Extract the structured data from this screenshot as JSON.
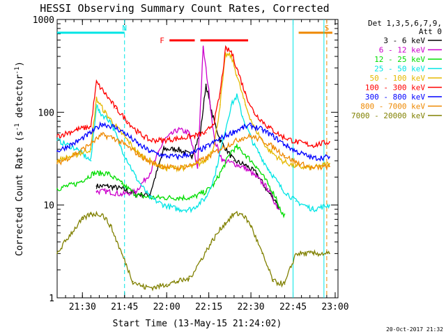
{
  "chart_data": {
    "type": "line",
    "title": "HESSI Observing Summary Count Rates, Corrected",
    "xlabel": "Start Time (13-May-15 21:24:02)",
    "ylabel": "Corrected Count Rate (s⁻¹ detector⁻¹)",
    "ylabel_parts": {
      "main": "Corrected Count Rate (s",
      "exp1": "-1",
      "mid": " detector",
      "exp2": "-1",
      "close": ")"
    },
    "x_start_min": 0,
    "x_range_min": [
      -3.0,
      97.0
    ],
    "y_log": true,
    "y_range": [
      1,
      1000
    ],
    "x_ticks": [
      {
        "label": "21:30",
        "t": 6
      },
      {
        "label": "21:45",
        "t": 21
      },
      {
        "label": "22:00",
        "t": 36
      },
      {
        "label": "22:15",
        "t": 51
      },
      {
        "label": "22:30",
        "t": 66
      },
      {
        "label": "22:45",
        "t": 81
      },
      {
        "label": "23:00",
        "t": 96
      }
    ],
    "y_ticks": [
      {
        "label": "1",
        "v": 1
      },
      {
        "label": "10",
        "v": 10
      },
      {
        "label": "100",
        "v": 100
      },
      {
        "label": "1000",
        "v": 1000
      }
    ],
    "legend_header": [
      "Det 1,3,5,6,7,9,",
      "Att 0"
    ],
    "series": [
      {
        "name": "3 - 6 keV",
        "color": "#000000",
        "points": [
          [
            11,
            16
          ],
          [
            15,
            16
          ],
          [
            20,
            15
          ],
          [
            25,
            13
          ],
          [
            30,
            13
          ],
          [
            35,
            40
          ],
          [
            40,
            40
          ],
          [
            45,
            34
          ],
          [
            48,
            60
          ],
          [
            50,
            200
          ],
          [
            52,
            100
          ],
          [
            55,
            50
          ],
          [
            60,
            30
          ],
          [
            64,
            27
          ],
          [
            68,
            22
          ],
          [
            72,
            14
          ],
          [
            75,
            11
          ],
          [
            76,
            9
          ]
        ]
      },
      {
        "name": "6 - 12 keV",
        "color": "#cc00cc",
        "points": [
          [
            11,
            14
          ],
          [
            15,
            14
          ],
          [
            20,
            13
          ],
          [
            25,
            14
          ],
          [
            30,
            22
          ],
          [
            35,
            50
          ],
          [
            40,
            65
          ],
          [
            44,
            60
          ],
          [
            47,
            25
          ],
          [
            49,
            500
          ],
          [
            51,
            170
          ],
          [
            53,
            50
          ],
          [
            56,
            30
          ],
          [
            60,
            28
          ],
          [
            64,
            25
          ],
          [
            68,
            20
          ],
          [
            72,
            15
          ],
          [
            75,
            10
          ],
          [
            76,
            9
          ]
        ]
      },
      {
        "name": "12 - 25 keV",
        "color": "#00dd00",
        "points": [
          [
            -3,
            15
          ],
          [
            4,
            17
          ],
          [
            10,
            22
          ],
          [
            15,
            22
          ],
          [
            20,
            17
          ],
          [
            25,
            13
          ],
          [
            30,
            12
          ],
          [
            35,
            12
          ],
          [
            40,
            12
          ],
          [
            45,
            12
          ],
          [
            50,
            14
          ],
          [
            53,
            17
          ],
          [
            56,
            25
          ],
          [
            59,
            38
          ],
          [
            61,
            42
          ],
          [
            64,
            35
          ],
          [
            68,
            26
          ],
          [
            72,
            17
          ],
          [
            75,
            12
          ],
          [
            77,
            8
          ],
          [
            78,
            8
          ]
        ]
      },
      {
        "name": "25 - 50 keV",
        "color": "#00e5e5",
        "points": [
          [
            -3,
            50
          ],
          [
            4,
            40
          ],
          [
            9,
            30
          ],
          [
            11,
            120
          ],
          [
            12,
            100
          ],
          [
            16,
            80
          ],
          [
            20,
            40
          ],
          [
            25,
            20
          ],
          [
            30,
            12
          ],
          [
            35,
            10
          ],
          [
            40,
            9
          ],
          [
            45,
            9
          ],
          [
            50,
            12
          ],
          [
            53,
            20
          ],
          [
            56,
            50
          ],
          [
            59,
            120
          ],
          [
            61,
            150
          ],
          [
            63,
            90
          ],
          [
            67,
            45
          ],
          [
            72,
            25
          ],
          [
            77,
            15
          ],
          [
            82,
            11
          ],
          [
            88,
            9
          ],
          [
            94,
            10
          ]
        ]
      },
      {
        "name": "50 - 100 keV",
        "color": "#e5b800",
        "points": [
          [
            -3,
            30
          ],
          [
            4,
            35
          ],
          [
            9,
            40
          ],
          [
            11,
            140
          ],
          [
            14,
            100
          ],
          [
            18,
            70
          ],
          [
            22,
            50
          ],
          [
            26,
            36
          ],
          [
            30,
            30
          ],
          [
            35,
            25
          ],
          [
            40,
            25
          ],
          [
            45,
            26
          ],
          [
            50,
            30
          ],
          [
            53,
            45
          ],
          [
            55,
            120
          ],
          [
            57,
            420
          ],
          [
            59,
            400
          ],
          [
            61,
            250
          ],
          [
            64,
            120
          ],
          [
            67,
            70
          ],
          [
            72,
            40
          ],
          [
            77,
            30
          ],
          [
            82,
            26
          ],
          [
            88,
            25
          ],
          [
            94,
            28
          ]
        ]
      },
      {
        "name": "100 - 300 keV",
        "color": "#ff0000",
        "points": [
          [
            -3,
            55
          ],
          [
            4,
            65
          ],
          [
            9,
            70
          ],
          [
            11,
            210
          ],
          [
            14,
            160
          ],
          [
            18,
            110
          ],
          [
            22,
            80
          ],
          [
            26,
            60
          ],
          [
            30,
            50
          ],
          [
            35,
            50
          ],
          [
            40,
            52
          ],
          [
            45,
            55
          ],
          [
            50,
            60
          ],
          [
            53,
            80
          ],
          [
            55,
            160
          ],
          [
            57,
            480
          ],
          [
            59,
            450
          ],
          [
            61,
            300
          ],
          [
            64,
            160
          ],
          [
            67,
            100
          ],
          [
            72,
            70
          ],
          [
            77,
            55
          ],
          [
            82,
            48
          ],
          [
            88,
            44
          ],
          [
            94,
            48
          ]
        ]
      },
      {
        "name": "300 - 800 keV",
        "color": "#0000ff",
        "points": [
          [
            -3,
            38
          ],
          [
            4,
            48
          ],
          [
            9,
            60
          ],
          [
            13,
            75
          ],
          [
            17,
            70
          ],
          [
            21,
            60
          ],
          [
            26,
            45
          ],
          [
            30,
            38
          ],
          [
            35,
            34
          ],
          [
            40,
            33
          ],
          [
            45,
            36
          ],
          [
            50,
            42
          ],
          [
            55,
            52
          ],
          [
            60,
            62
          ],
          [
            63,
            68
          ],
          [
            66,
            72
          ],
          [
            70,
            65
          ],
          [
            74,
            55
          ],
          [
            78,
            45
          ],
          [
            82,
            38
          ],
          [
            88,
            32
          ],
          [
            94,
            33
          ]
        ]
      },
      {
        "name": "800 - 7000 keV",
        "color": "#ee8800",
        "points": [
          [
            -3,
            28
          ],
          [
            4,
            36
          ],
          [
            9,
            46
          ],
          [
            13,
            57
          ],
          [
            17,
            53
          ],
          [
            21,
            45
          ],
          [
            26,
            35
          ],
          [
            30,
            29
          ],
          [
            35,
            26
          ],
          [
            40,
            25
          ],
          [
            45,
            27
          ],
          [
            50,
            32
          ],
          [
            55,
            40
          ],
          [
            60,
            48
          ],
          [
            63,
            53
          ],
          [
            66,
            55
          ],
          [
            70,
            50
          ],
          [
            74,
            42
          ],
          [
            78,
            34
          ],
          [
            82,
            29
          ],
          [
            88,
            25
          ],
          [
            94,
            26
          ]
        ]
      },
      {
        "name": "7000 - 20000 keV",
        "color": "#808000",
        "points": [
          [
            -3,
            3
          ],
          [
            2,
            5
          ],
          [
            6,
            7
          ],
          [
            9,
            8
          ],
          [
            13,
            8
          ],
          [
            16,
            6
          ],
          [
            20,
            3
          ],
          [
            24,
            1.5
          ],
          [
            28,
            1.3
          ],
          [
            32,
            1.3
          ],
          [
            36,
            1.4
          ],
          [
            40,
            1.5
          ],
          [
            44,
            1.6
          ],
          [
            48,
            2.5
          ],
          [
            52,
            4
          ],
          [
            56,
            6
          ],
          [
            60,
            8
          ],
          [
            63,
            8
          ],
          [
            66,
            6
          ],
          [
            70,
            3
          ],
          [
            74,
            1.5
          ],
          [
            78,
            1.4
          ],
          [
            82,
            3
          ],
          [
            88,
            3
          ],
          [
            94,
            3
          ]
        ]
      }
    ],
    "flags": [
      {
        "label": "N",
        "color": "#00e5e5",
        "t": 21,
        "bar_start": -3,
        "bar_end": 21
      },
      {
        "label": "S",
        "color": "#ee8800",
        "t": 93,
        "bar_start": 83,
        "bar_end": 95
      }
    ],
    "flare_label": "F",
    "flare_bars": [
      [
        37,
        46
      ],
      [
        48,
        65
      ]
    ],
    "vlines_cyan": [
      81,
      92
    ]
  },
  "footer_date": "20-Oct-2017 21:32"
}
